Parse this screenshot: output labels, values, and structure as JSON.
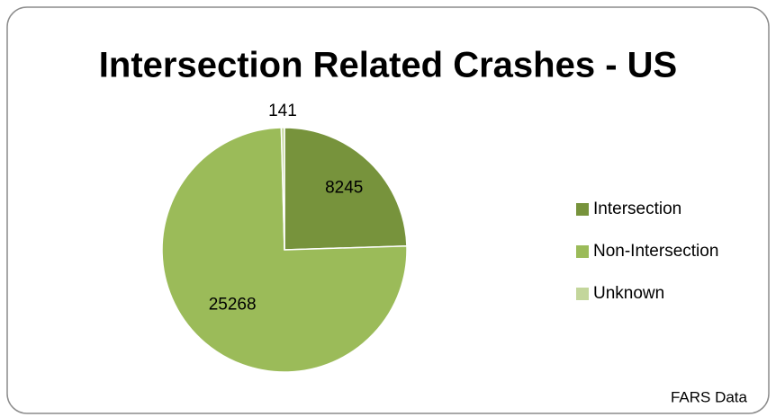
{
  "chart_data": {
    "type": "pie",
    "title": "Intersection Related Crashes - US",
    "categories": [
      "Intersection",
      "Non-Intersection",
      "Unknown"
    ],
    "values": [
      8245,
      25268,
      141
    ],
    "colors": [
      "#77933c",
      "#9bbb59",
      "#c3d69b"
    ],
    "legend": "right",
    "annotation": "FARS Data"
  }
}
